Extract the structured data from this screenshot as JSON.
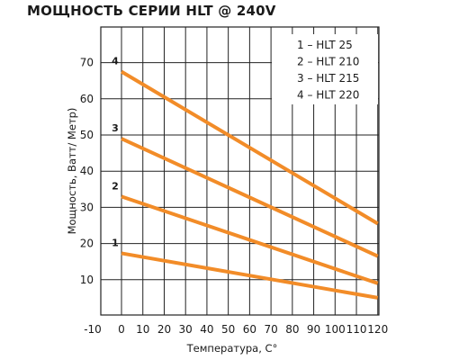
{
  "chart_data": {
    "type": "line",
    "title": "МОЩНОСТЬ СЕРИИ HLT @ 240V",
    "xlabel": "Температура, С°",
    "ylabel": "Мощность, Ватт/ Метр)",
    "xlim": [
      -10,
      120
    ],
    "ylim": [
      0,
      75
    ],
    "x_ticks": [
      "-10",
      "0",
      "10",
      "20",
      "30",
      "40",
      "50",
      "60",
      "70",
      "80",
      "90",
      "100",
      "110",
      "120"
    ],
    "y_ticks": [
      "10",
      "20",
      "30",
      "40",
      "50",
      "60",
      "70"
    ],
    "grid": true,
    "legend_position": "top-right",
    "legend": [
      "1 – HLT 25",
      "2 – HLT 210",
      "3 – HLT 215",
      "4 – HLT 220"
    ],
    "line_color": "#f28c28",
    "series": [
      {
        "name": "1",
        "x": [
          0,
          120
        ],
        "y": [
          17.3,
          5
        ]
      },
      {
        "name": "2",
        "x": [
          0,
          120
        ],
        "y": [
          33,
          9
        ]
      },
      {
        "name": "3",
        "x": [
          0,
          120
        ],
        "y": [
          49,
          16.5
        ]
      },
      {
        "name": "4",
        "x": [
          0,
          120
        ],
        "y": [
          67.5,
          25.5
        ]
      }
    ]
  }
}
